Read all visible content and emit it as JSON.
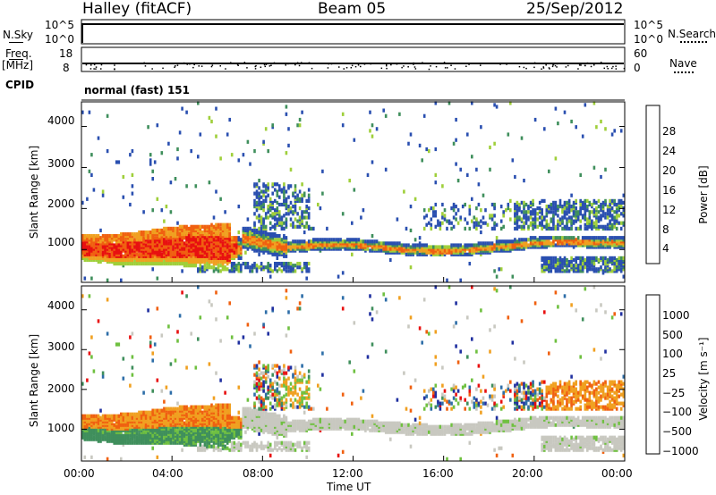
{
  "header": {
    "station": "Halley (fitACF)",
    "beam": "Beam 05",
    "date": "25/Sep/2012"
  },
  "strip": {
    "nsky_label": "N.Sky",
    "nsky_ticks": [
      "10^5",
      "10^0"
    ],
    "nsearch_label": "N.Search",
    "nsearch_ticks": [
      "10^5",
      "10^0"
    ],
    "freq_label": "Freq.",
    "freq_unit": "[MHz]",
    "freq_ticks": [
      "18",
      "8"
    ],
    "nave_label": "Nave",
    "nave_ticks": [
      "60",
      "0"
    ],
    "cpid_label": "CPID",
    "cpid_value": "normal (fast) 151"
  },
  "chart_data": [
    {
      "type": "heatmap",
      "panel": "power",
      "ylabel": "Slant Range [km]",
      "y_ticks": [
        "1000",
        "2000",
        "3000",
        "4000"
      ],
      "ylim": [
        200,
        4600
      ],
      "xlim": [
        0,
        24
      ],
      "colorbar_label": "Power [dB]",
      "colorbar_ticks": [
        "28",
        "24",
        "20",
        "16",
        "12",
        "8",
        "4"
      ],
      "colors": [
        "#1a1aff",
        "#2a4fb0",
        "#3f8f5c",
        "#9fcf3a",
        "#f0a020",
        "#f06010",
        "#e81010"
      ]
    },
    {
      "type": "heatmap",
      "panel": "velocity",
      "ylabel": "Slant Range [km]",
      "y_ticks": [
        "1000",
        "2000",
        "3000",
        "4000"
      ],
      "ylim": [
        200,
        4600
      ],
      "xlim": [
        0,
        24
      ],
      "xlabel": "Time UT",
      "x_ticks": [
        "00:00",
        "04:00",
        "08:00",
        "12:00",
        "16:00",
        "20:00",
        "00:00"
      ],
      "colorbar_label": "Velocity [m s⁻¹]",
      "colorbar_ticks": [
        "1000",
        "500",
        "100",
        "25",
        "−25",
        "−100",
        "−500",
        "−1000"
      ],
      "colors": [
        "#2030a0",
        "#2e6ea8",
        "#3f8f5c",
        "#6fc040",
        "#c8c8c0",
        "#f0a020",
        "#f06010",
        "#e81010"
      ]
    }
  ]
}
